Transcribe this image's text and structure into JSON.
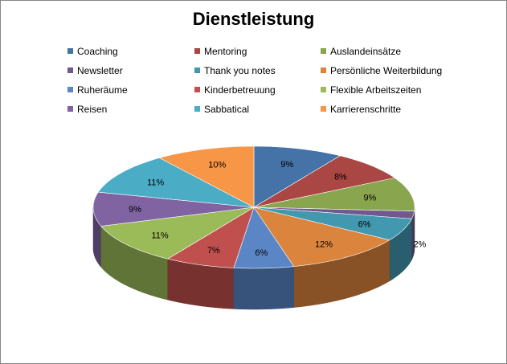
{
  "chart_data": {
    "type": "pie",
    "title": "Dienstleistung",
    "legend_position": "top",
    "categories": [
      "Coaching",
      "Mentoring",
      "Auslandeinsätze",
      "Newsletter",
      "Thank you notes",
      "Persönliche Weiterbildung",
      "Ruheräume",
      "Kinderbetreuung",
      "Flexible Arbeitszeiten",
      "Reisen",
      "Sabbatical",
      "Karrierenschritte"
    ],
    "values": [
      9,
      8,
      9,
      2,
      6,
      12,
      6,
      7,
      11,
      9,
      11,
      10
    ],
    "labels": [
      "9%",
      "8%",
      "9%",
      "2%",
      "6%",
      "12%",
      "6%",
      "7%",
      "11%",
      "9%",
      "11%",
      "10%"
    ],
    "colors": [
      "#4572A7",
      "#AA4643",
      "#89A54E",
      "#71588F",
      "#4198AF",
      "#DB843D",
      "#5B86C6",
      "#C0504D",
      "#9BBB59",
      "#8064A2",
      "#4BACC6",
      "#F79646"
    ]
  }
}
